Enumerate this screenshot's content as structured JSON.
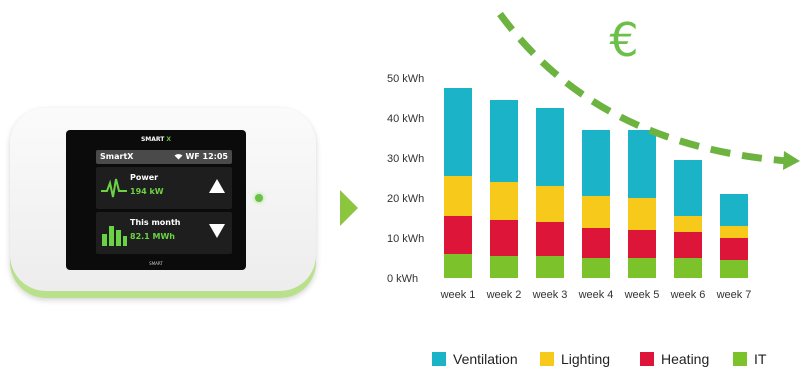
{
  "device": {
    "brand": "SMART",
    "brand_accent": "X",
    "app_name": "SmartX",
    "status": "WF 12:05",
    "power_title": "Power",
    "power_value": "194 kW",
    "month_title": "This month",
    "month_value": "82.1 MWh",
    "footer": "SMART",
    "led_label": "",
    "icons": [
      "wifi-icon",
      "heartbeat-icon",
      "bar-chart-icon",
      "arrow-up-icon",
      "arrow-down-icon",
      "power-led-icon"
    ]
  },
  "euro_symbol": "€",
  "colors": {
    "ventilation": "#1bb3c7",
    "lighting": "#f7c91a",
    "heating": "#dd1639",
    "it": "#7cc32b",
    "accent": "#6cc04a",
    "trend": "#6cb33f"
  },
  "chart_data": {
    "type": "bar",
    "stacked": true,
    "categories": [
      "week 1",
      "week 2",
      "week 3",
      "week 4",
      "week 5",
      "week 6",
      "week 7"
    ],
    "series": [
      {
        "name": "IT",
        "values": [
          6,
          5.5,
          5.5,
          5,
          5,
          5,
          4.5
        ]
      },
      {
        "name": "Heating",
        "values": [
          9.5,
          9,
          8.5,
          7.5,
          7,
          6.5,
          5.5
        ]
      },
      {
        "name": "Lighting",
        "values": [
          10,
          9.5,
          9,
          8,
          8,
          4,
          3
        ]
      },
      {
        "name": "Ventilation",
        "values": [
          22,
          20.5,
          19.5,
          16.5,
          17,
          14,
          8
        ]
      }
    ],
    "legend_order": [
      "Ventilation",
      "Lighting",
      "Heating",
      "IT"
    ],
    "y_ticks": [
      "0 kWh",
      "10 kWh",
      "20 kWh",
      "30 kWh",
      "40 kWh",
      "50 kWh"
    ],
    "ylim": [
      0,
      50
    ],
    "xlabel": "",
    "ylabel": "",
    "grid": false,
    "legend": "bottom",
    "annotation": "€"
  }
}
